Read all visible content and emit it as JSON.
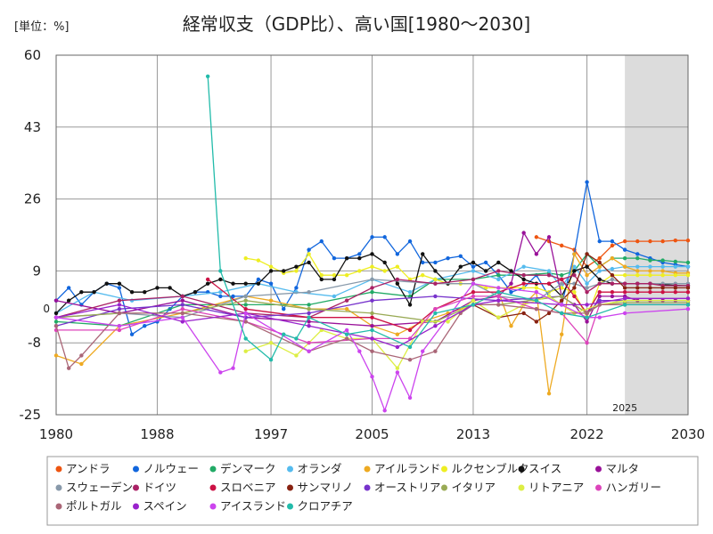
{
  "title": "経常収支（GDP比）、高い国[1980〜2030]",
  "unit_label": "[単位：%]",
  "chart_data": {
    "type": "line",
    "x_range": [
      1980,
      2030
    ],
    "y_range": [
      -25,
      60
    ],
    "x_ticks": [
      1980,
      1988,
      1997,
      2005,
      2013,
      2022,
      2030
    ],
    "y_ticks": [
      -25,
      -8,
      9,
      26,
      43,
      60
    ],
    "zero_label": "0",
    "projection_start": 2025,
    "projection_label": "2025",
    "grid": true,
    "legend_position": "bottom",
    "series": [
      {
        "name": "アンドラ",
        "color": "#ee5511",
        "x": [
          2018,
          2019,
          2020,
          2021,
          2022,
          2023,
          2024,
          2025,
          2026,
          2027,
          2028,
          2029,
          2030
        ],
        "values": [
          17,
          16,
          15,
          14,
          10,
          12,
          15,
          16,
          16,
          16,
          16,
          16.2,
          16.2
        ]
      },
      {
        "name": "ノルウェー",
        "color": "#1166dd",
        "x": [
          1980,
          1981,
          1982,
          1983,
          1984,
          1985,
          1986,
          1987,
          1988,
          1989,
          1990,
          1991,
          1992,
          1993,
          1994,
          1995,
          1996,
          1997,
          1998,
          1999,
          2000,
          2001,
          2002,
          2003,
          2004,
          2005,
          2006,
          2007,
          2008,
          2009,
          2010,
          2011,
          2012,
          2013,
          2014,
          2015,
          2016,
          2017,
          2018,
          2019,
          2020,
          2021,
          2022,
          2023,
          2024,
          2025,
          2026,
          2027,
          2028,
          2029,
          2030
        ],
        "values": [
          2,
          5,
          1,
          4,
          6,
          5,
          -6,
          -4,
          -3,
          0,
          3,
          4,
          4,
          3,
          3,
          3,
          7,
          6,
          0,
          5,
          14,
          16,
          12,
          12,
          13,
          17,
          17,
          13,
          16,
          11,
          11,
          12,
          12.5,
          10,
          11,
          8,
          4,
          5,
          8,
          3,
          1,
          13,
          30,
          16,
          16,
          14,
          13,
          12,
          11,
          10.5,
          10
        ]
      },
      {
        "name": "デンマーク",
        "color": "#22aa66",
        "x": [
          1980,
          1985,
          1990,
          1995,
          2000,
          2005,
          2008,
          2010,
          2013,
          2015,
          2017,
          2019,
          2020,
          2021,
          2022,
          2023,
          2024,
          2025,
          2026,
          2027,
          2028,
          2029,
          2030
        ],
        "values": [
          -3,
          -4,
          1,
          1,
          1,
          4,
          3,
          7,
          7,
          8,
          8,
          8.5,
          8,
          9,
          13,
          10,
          12,
          12,
          12,
          11.5,
          11.5,
          11.2,
          11
        ]
      },
      {
        "name": "オランダ",
        "color": "#55bbee",
        "x": [
          1980,
          1983,
          1986,
          1990,
          1993,
          1996,
          1999,
          2002,
          2005,
          2008,
          2010,
          2013,
          2015,
          2017,
          2019,
          2020,
          2021,
          2022,
          2023,
          2024,
          2025,
          2026,
          2027,
          2028,
          2029,
          2030
        ],
        "values": [
          -1,
          4,
          2,
          3,
          4,
          6,
          4,
          3,
          7,
          4,
          7,
          9,
          7,
          10,
          9,
          5,
          10,
          6,
          9,
          9.5,
          10,
          10,
          10,
          10,
          10,
          10
        ]
      },
      {
        "name": "アイルランド",
        "color": "#eeaa22",
        "x": [
          1980,
          1982,
          1985,
          1990,
          1995,
          1997,
          2000,
          2003,
          2005,
          2007,
          2009,
          2011,
          2013,
          2015,
          2016,
          2017,
          2018,
          2019,
          2020,
          2021,
          2022,
          2023,
          2024,
          2025,
          2026,
          2027,
          2028,
          2029,
          2030
        ],
        "values": [
          -11,
          -13,
          -4,
          -1,
          3,
          2,
          0,
          0,
          -4,
          -6,
          -3,
          -1,
          1,
          4,
          -4,
          1,
          4,
          -20,
          -6,
          13,
          8,
          10,
          12,
          10,
          9,
          9,
          9,
          8.5,
          8.5
        ]
      },
      {
        "name": "ルクセンブルク",
        "color": "#eeee22",
        "x": [
          1995,
          1996,
          1997,
          1998,
          1999,
          2000,
          2001,
          2002,
          2003,
          2004,
          2005,
          2006,
          2007,
          2008,
          2009,
          2010,
          2011,
          2012,
          2013,
          2014,
          2015,
          2016,
          2017,
          2018,
          2019,
          2020,
          2021,
          2022,
          2023,
          2024,
          2025,
          2026,
          2027,
          2028,
          2029,
          2030
        ],
        "values": [
          12,
          11.5,
          10,
          8.5,
          9,
          13,
          8,
          8,
          8,
          9,
          10,
          9,
          10,
          7,
          8,
          7,
          6,
          6,
          6,
          5,
          5,
          5,
          5,
          5,
          4,
          5,
          4,
          -2,
          6,
          8,
          8,
          8,
          8,
          8,
          8,
          8
        ]
      },
      {
        "name": "スイス",
        "color": "#111111",
        "x": [
          1980,
          1981,
          1982,
          1983,
          1984,
          1985,
          1986,
          1987,
          1988,
          1989,
          1990,
          1991,
          1992,
          1993,
          1994,
          1995,
          1996,
          1997,
          1998,
          1999,
          2000,
          2001,
          2002,
          2003,
          2004,
          2005,
          2006,
          2007,
          2008,
          2009,
          2010,
          2011,
          2012,
          2013,
          2014,
          2015,
          2016,
          2017,
          2018,
          2019,
          2020,
          2021,
          2022,
          2023,
          2024,
          2025,
          2026,
          2027,
          2028,
          2029,
          2030
        ],
        "values": [
          -1,
          2,
          4,
          4,
          6,
          6,
          4,
          4,
          5,
          5,
          3,
          4,
          6,
          7,
          6,
          6,
          6,
          9,
          9,
          10,
          11,
          7,
          7,
          12,
          12,
          13,
          11,
          6,
          1,
          13,
          9,
          6,
          10,
          11,
          9,
          11,
          9,
          7,
          6,
          6,
          3,
          9,
          10,
          7,
          6,
          6,
          6,
          6,
          5.8,
          5.6,
          5.5
        ]
      },
      {
        "name": "マルタ",
        "color": "#991199",
        "x": [
          1980,
          1985,
          1990,
          1995,
          2000,
          2005,
          2010,
          2013,
          2015,
          2016,
          2017,
          2018,
          2019,
          2020,
          2021,
          2022,
          2023,
          2024,
          2025,
          2026,
          2027,
          2028,
          2029,
          2030
        ],
        "values": [
          2,
          -1,
          2,
          -2,
          -3,
          -4,
          -3,
          2,
          3,
          6,
          18,
          13,
          17,
          3,
          1,
          -3,
          3,
          3,
          3,
          2,
          2,
          2,
          2,
          2
        ]
      },
      {
        "name": "スウェーデン",
        "color": "#8899aa",
        "x": [
          1980,
          1985,
          1990,
          1995,
          2000,
          2005,
          2010,
          2013,
          2015,
          2018,
          2020,
          2021,
          2022,
          2023,
          2024,
          2025,
          2026,
          2027,
          2028,
          2029,
          2030
        ],
        "values": [
          -2,
          -1,
          -2,
          3,
          4,
          7,
          6,
          6,
          3,
          2,
          6,
          6,
          5,
          6,
          7,
          6,
          6,
          6,
          6,
          6,
          6
        ]
      },
      {
        "name": "ドイツ",
        "color": "#aa2266",
        "x": [
          1980,
          1985,
          1990,
          1995,
          2000,
          2003,
          2005,
          2007,
          2010,
          2013,
          2015,
          2017,
          2019,
          2020,
          2021,
          2022,
          2023,
          2024,
          2025,
          2026,
          2027,
          2028,
          2029,
          2030
        ],
        "values": [
          -2,
          2,
          3,
          -1,
          -2,
          2,
          5,
          7,
          6,
          7,
          9,
          8,
          8,
          7,
          8,
          4,
          6,
          6,
          6,
          6,
          6,
          5.5,
          5.5,
          5.5
        ]
      },
      {
        "name": "スロベニア",
        "color": "#cc1144",
        "x": [
          1992,
          1995,
          2000,
          2005,
          2008,
          2010,
          2013,
          2015,
          2017,
          2019,
          2020,
          2021,
          2022,
          2023,
          2024,
          2025,
          2026,
          2027,
          2028,
          2029,
          2030
        ],
        "values": [
          7,
          0,
          -2,
          -2,
          -5,
          0,
          4,
          4,
          6,
          6,
          7,
          3,
          -1,
          4,
          4,
          4,
          4,
          4,
          4,
          4,
          4
        ]
      },
      {
        "name": "サンマリノ",
        "color": "#882211",
        "x": [
          2013,
          2015,
          2017,
          2018,
          2019,
          2020,
          2021,
          2022,
          2023,
          2024,
          2025,
          2026,
          2027,
          2028,
          2029,
          2030
        ],
        "values": [
          1,
          -2,
          -1,
          -3,
          -1,
          2,
          5,
          13,
          11,
          8,
          5,
          5,
          5,
          5,
          5,
          5
        ]
      },
      {
        "name": "オーストリア",
        "color": "#7733cc",
        "x": [
          1980,
          1985,
          1990,
          1995,
          2000,
          2005,
          2010,
          2015,
          2020,
          2022,
          2023,
          2025,
          2030
        ],
        "values": [
          -4,
          0,
          1,
          -2,
          -1,
          2,
          3,
          2,
          3,
          -1,
          2,
          2,
          2
        ]
      },
      {
        "name": "イタリア",
        "color": "#99aa55",
        "x": [
          1980,
          1985,
          1990,
          1995,
          2000,
          2005,
          2010,
          2013,
          2015,
          2020,
          2022,
          2023,
          2025,
          2030
        ],
        "values": [
          -2,
          -1,
          -1,
          2,
          0,
          -1,
          -3,
          1,
          1,
          3,
          -1,
          1,
          1.5,
          1.5
        ]
      },
      {
        "name": "リトアニア",
        "color": "#ddee44",
        "x": [
          1995,
          1997,
          1999,
          2001,
          2003,
          2005,
          2007,
          2009,
          2011,
          2013,
          2015,
          2017,
          2019,
          2021,
          2023,
          2025,
          2030
        ],
        "values": [
          -10,
          -8,
          -11,
          -5,
          -7,
          -7,
          -14,
          -3,
          -3,
          2,
          -2,
          1,
          3,
          -1,
          1,
          2,
          2
        ]
      },
      {
        "name": "ハンガリー",
        "color": "#dd44bb",
        "x": [
          1980,
          1985,
          1990,
          1995,
          2000,
          2005,
          2008,
          2010,
          2013,
          2015,
          2018,
          2020,
          2022,
          2023,
          2025,
          2030
        ],
        "values": [
          -5,
          -5,
          0,
          -3,
          -8,
          -7,
          -7,
          0,
          3,
          3,
          0,
          -1,
          -8,
          1,
          1,
          1
        ]
      },
      {
        "name": "ポルトガル",
        "color": "#aa6677",
        "x": [
          1980,
          1981,
          1982,
          1985,
          1990,
          1995,
          2000,
          2003,
          2005,
          2008,
          2010,
          2012,
          2013,
          2015,
          2018,
          2020,
          2022,
          2023,
          2025,
          2030
        ],
        "values": [
          -4,
          -14,
          -11,
          -1,
          -1,
          -3,
          -10,
          -7,
          -10,
          -12,
          -10,
          -1,
          1,
          1,
          0,
          -1,
          -1,
          1,
          1,
          1
        ]
      },
      {
        "name": "スペイン",
        "color": "#9922cc",
        "x": [
          1980,
          1985,
          1990,
          1995,
          2000,
          2005,
          2007,
          2010,
          2013,
          2015,
          2020,
          2022,
          2025,
          2030
        ],
        "values": [
          -2,
          1,
          -3,
          -1,
          -4,
          -7,
          -9,
          -4,
          1,
          2,
          1,
          1,
          2.5,
          2.5
        ]
      },
      {
        "name": "アイスランド",
        "color": "#cc44ee",
        "x": [
          1980,
          1985,
          1990,
          1993,
          1994,
          1995,
          2000,
          2003,
          2004,
          2005,
          2006,
          2007,
          2008,
          2009,
          2013,
          2015,
          2018,
          2020,
          2022,
          2023,
          2025,
          2030
        ],
        "values": [
          -2,
          -4,
          -2,
          -15,
          -14,
          -1,
          -10,
          -5,
          -10,
          -16,
          -24,
          -15,
          -21,
          -10,
          6,
          5,
          4,
          1,
          -2,
          -2,
          -1,
          0
        ]
      },
      {
        "name": "クロアチア",
        "color": "#22bbaa",
        "x": [
          1992,
          1993,
          1995,
          1997,
          1998,
          1999,
          2000,
          2003,
          2005,
          2008,
          2010,
          2013,
          2015,
          2018,
          2020,
          2022,
          2025,
          2030
        ],
        "values": [
          55,
          9,
          -7,
          -12,
          -6,
          -7,
          -2,
          -6,
          -5,
          -9,
          -1,
          1,
          4,
          2,
          -1,
          -2,
          1,
          1
        ]
      }
    ]
  }
}
